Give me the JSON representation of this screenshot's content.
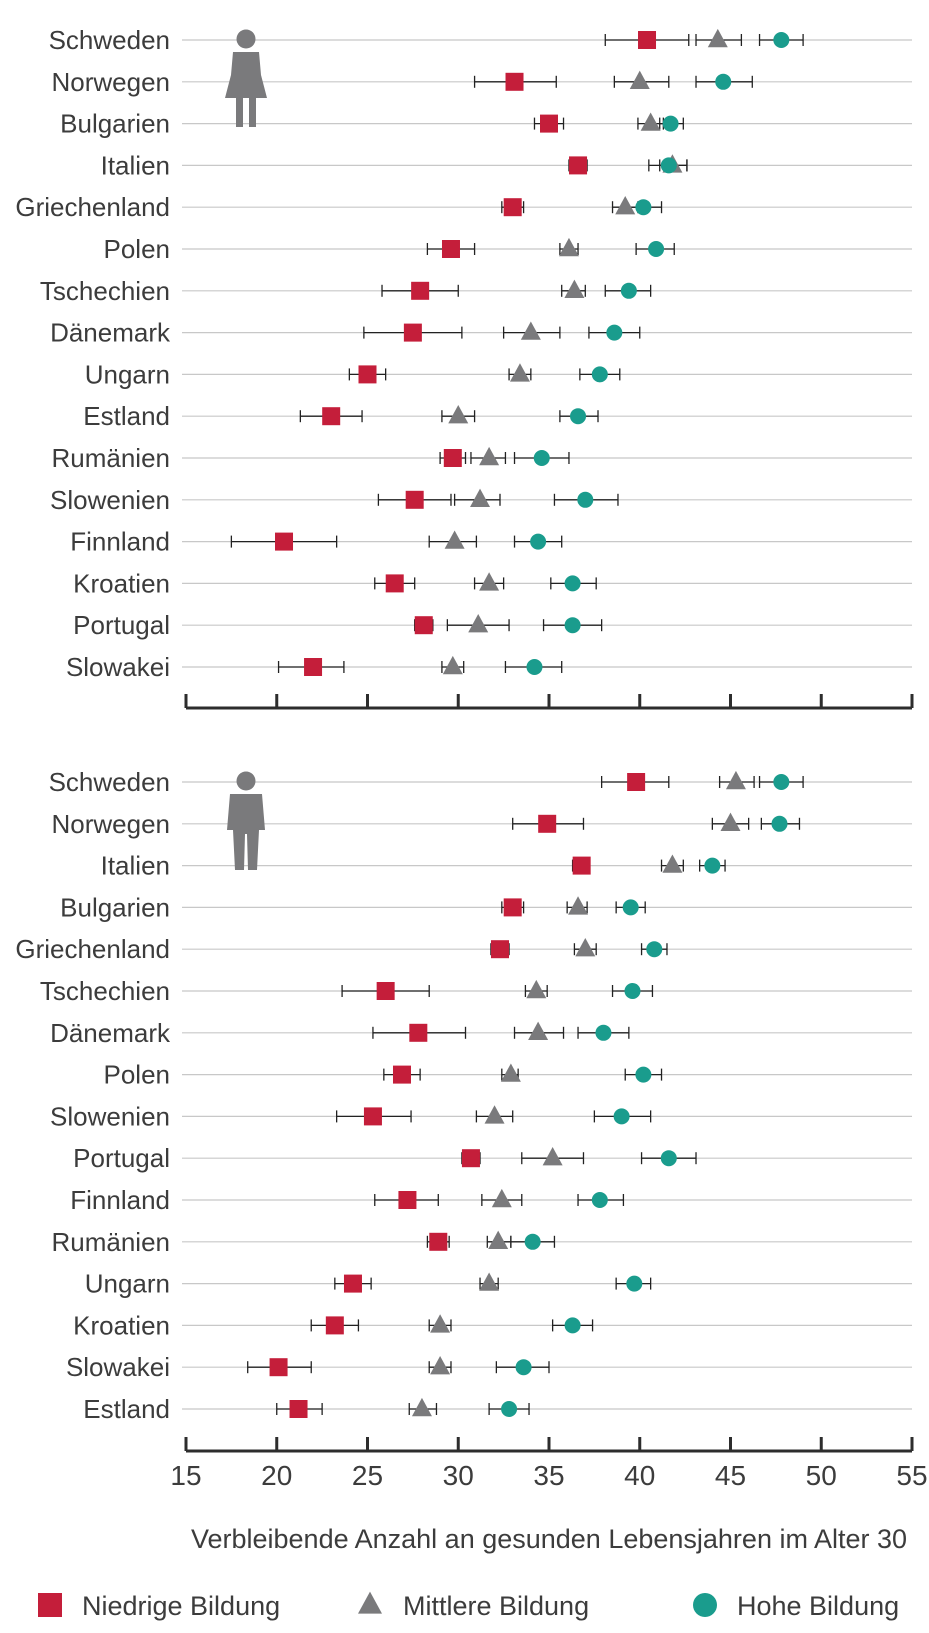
{
  "chart_data": {
    "type": "scatter",
    "xlabel": "Verbleibende Anzahl an gesunden Lebensjahren im Alter 30",
    "xlim": [
      15,
      55
    ],
    "xticks": [
      15,
      20,
      25,
      30,
      35,
      40,
      45,
      50,
      55
    ],
    "legend_position": "bottom",
    "grid": "horizontal",
    "colors": {
      "low": "#c41e3a",
      "mid": "#7a7a7c",
      "high": "#1a9c8d",
      "icon": "#7a7a7c",
      "line": "#c8c8c8",
      "axis": "#2d2d2d"
    },
    "series": [
      {
        "key": "low",
        "name": "Niedrige Bildung",
        "marker": "square"
      },
      {
        "key": "mid",
        "name": "Mittlere Bildung",
        "marker": "triangle"
      },
      {
        "key": "high",
        "name": "Hohe Bildung",
        "marker": "circle"
      }
    ],
    "panels": [
      {
        "icon": "female-icon",
        "rows": [
          {
            "country": "Schweden",
            "low": [
              40.4,
              38.1,
              42.7
            ],
            "mid": [
              44.3,
              43.1,
              45.6
            ],
            "high": [
              47.8,
              46.6,
              49.0
            ]
          },
          {
            "country": "Norwegen",
            "low": [
              33.1,
              30.9,
              35.4
            ],
            "mid": [
              40.0,
              38.6,
              41.6
            ],
            "high": [
              44.6,
              43.1,
              46.2
            ]
          },
          {
            "country": "Bulgarien",
            "low": [
              35.0,
              34.2,
              35.8
            ],
            "mid": [
              40.6,
              39.9,
              41.3
            ],
            "high": [
              41.7,
              41.1,
              42.4
            ]
          },
          {
            "country": "Italien",
            "low": [
              36.6,
              36.1,
              37.1
            ],
            "mid": [
              41.8,
              41.1,
              42.6
            ],
            "high": [
              41.6,
              40.5,
              42.6
            ]
          },
          {
            "country": "Griechenland",
            "low": [
              33.0,
              32.4,
              33.6
            ],
            "mid": [
              39.2,
              38.5,
              39.9
            ],
            "high": [
              40.2,
              39.2,
              41.2
            ]
          },
          {
            "country": "Polen",
            "low": [
              29.6,
              28.3,
              30.9
            ],
            "mid": [
              36.1,
              35.6,
              36.6
            ],
            "high": [
              40.9,
              39.8,
              41.9
            ]
          },
          {
            "country": "Tschechien",
            "low": [
              27.9,
              25.8,
              30.0
            ],
            "mid": [
              36.4,
              35.7,
              37.0
            ],
            "high": [
              39.4,
              38.1,
              40.6
            ]
          },
          {
            "country": "Dänemark",
            "low": [
              27.5,
              24.8,
              30.2
            ],
            "mid": [
              34.0,
              32.5,
              35.6
            ],
            "high": [
              38.6,
              37.2,
              40.0
            ]
          },
          {
            "country": "Ungarn",
            "low": [
              25.0,
              24.0,
              26.0
            ],
            "mid": [
              33.4,
              32.8,
              34.0
            ],
            "high": [
              37.8,
              36.7,
              38.9
            ]
          },
          {
            "country": "Estland",
            "low": [
              23.0,
              21.3,
              24.7
            ],
            "mid": [
              30.0,
              29.1,
              30.9
            ],
            "high": [
              36.6,
              35.6,
              37.7
            ]
          },
          {
            "country": "Rumänien",
            "low": [
              29.7,
              29.0,
              30.4
            ],
            "mid": [
              31.7,
              30.7,
              32.6
            ],
            "high": [
              34.6,
              33.1,
              36.1
            ]
          },
          {
            "country": "Slowenien",
            "low": [
              27.6,
              25.6,
              29.6
            ],
            "mid": [
              31.2,
              29.8,
              32.3
            ],
            "high": [
              37.0,
              35.3,
              38.8
            ]
          },
          {
            "country": "Finnland",
            "low": [
              20.4,
              17.5,
              23.3
            ],
            "mid": [
              29.8,
              28.4,
              31.0
            ],
            "high": [
              34.4,
              33.1,
              35.7
            ]
          },
          {
            "country": "Kroatien",
            "low": [
              26.5,
              25.4,
              27.6
            ],
            "mid": [
              31.7,
              30.9,
              32.5
            ],
            "high": [
              36.3,
              35.1,
              37.6
            ]
          },
          {
            "country": "Portugal",
            "low": [
              28.1,
              27.6,
              28.6
            ],
            "mid": [
              31.1,
              29.4,
              32.8
            ],
            "high": [
              36.3,
              34.7,
              37.9
            ]
          },
          {
            "country": "Slowakei",
            "low": [
              22.0,
              20.1,
              23.7
            ],
            "mid": [
              29.7,
              29.1,
              30.3
            ],
            "high": [
              34.2,
              32.6,
              35.7
            ]
          }
        ]
      },
      {
        "icon": "male-icon",
        "rows": [
          {
            "country": "Schweden",
            "low": [
              39.8,
              37.9,
              41.6
            ],
            "mid": [
              45.3,
              44.4,
              46.3
            ],
            "high": [
              47.8,
              46.6,
              49.0
            ]
          },
          {
            "country": "Norwegen",
            "low": [
              34.9,
              33.0,
              36.9
            ],
            "mid": [
              45.0,
              44.0,
              46.0
            ],
            "high": [
              47.7,
              46.7,
              48.8
            ]
          },
          {
            "country": "Italien",
            "low": [
              36.8,
              36.3,
              37.2
            ],
            "mid": [
              41.8,
              41.2,
              42.4
            ],
            "high": [
              44.0,
              43.3,
              44.7
            ]
          },
          {
            "country": "Bulgarien",
            "low": [
              33.0,
              32.4,
              33.6
            ],
            "mid": [
              36.6,
              36.0,
              37.1
            ],
            "high": [
              39.5,
              38.7,
              40.3
            ]
          },
          {
            "country": "Griechenland",
            "low": [
              32.3,
              31.8,
              32.8
            ],
            "mid": [
              37.0,
              36.4,
              37.6
            ],
            "high": [
              40.8,
              40.1,
              41.5
            ]
          },
          {
            "country": "Tschechien",
            "low": [
              26.0,
              23.6,
              28.4
            ],
            "mid": [
              34.3,
              33.7,
              34.9
            ],
            "high": [
              39.6,
              38.5,
              40.7
            ]
          },
          {
            "country": "Dänemark",
            "low": [
              27.8,
              25.3,
              30.4
            ],
            "mid": [
              34.4,
              33.1,
              35.8
            ],
            "high": [
              38.0,
              36.6,
              39.4
            ]
          },
          {
            "country": "Polen",
            "low": [
              26.9,
              25.9,
              27.9
            ],
            "mid": [
              32.9,
              32.4,
              33.3
            ],
            "high": [
              40.2,
              39.2,
              41.2
            ]
          },
          {
            "country": "Slowenien",
            "low": [
              25.3,
              23.3,
              27.4
            ],
            "mid": [
              32.0,
              31.0,
              33.0
            ],
            "high": [
              39.0,
              37.5,
              40.6
            ]
          },
          {
            "country": "Portugal",
            "low": [
              30.7,
              30.2,
              31.2
            ],
            "mid": [
              35.2,
              33.5,
              36.9
            ],
            "high": [
              41.6,
              40.1,
              43.1
            ]
          },
          {
            "country": "Finnland",
            "low": [
              27.2,
              25.4,
              28.9
            ],
            "mid": [
              32.4,
              31.3,
              33.5
            ],
            "high": [
              37.8,
              36.6,
              39.1
            ]
          },
          {
            "country": "Rumänien",
            "low": [
              28.9,
              28.3,
              29.5
            ],
            "mid": [
              32.2,
              31.6,
              32.9
            ],
            "high": [
              34.1,
              32.9,
              35.3
            ]
          },
          {
            "country": "Ungarn",
            "low": [
              24.2,
              23.2,
              25.2
            ],
            "mid": [
              31.7,
              31.2,
              32.2
            ],
            "high": [
              39.7,
              38.7,
              40.6
            ]
          },
          {
            "country": "Kroatien",
            "low": [
              23.2,
              21.9,
              24.5
            ],
            "mid": [
              29.0,
              28.4,
              29.6
            ],
            "high": [
              36.3,
              35.2,
              37.4
            ]
          },
          {
            "country": "Slowakei",
            "low": [
              20.1,
              18.4,
              21.9
            ],
            "mid": [
              29.0,
              28.4,
              29.6
            ],
            "high": [
              33.6,
              32.1,
              35.0
            ]
          },
          {
            "country": "Estland",
            "low": [
              21.2,
              20.0,
              22.5
            ],
            "mid": [
              28.0,
              27.3,
              28.8
            ],
            "high": [
              32.8,
              31.7,
              33.9
            ]
          }
        ]
      }
    ]
  }
}
